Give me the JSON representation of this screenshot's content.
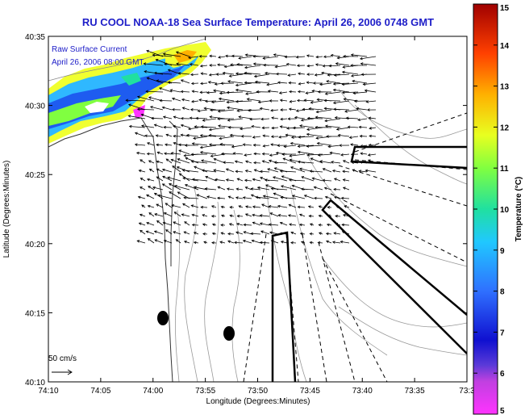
{
  "title": "RU COOL  NOAA-18  Sea Surface Temperature:  April 26, 2006 0748 GMT",
  "inset": {
    "line1": "Raw Surface Current",
    "line2": "April 26, 2006 08:00 GMT"
  },
  "scale_label": "50 cm/s",
  "axes": {
    "xlabel": "Longitude (Degrees:Minutes)",
    "ylabel": "Latitude (Degrees:Minutes)",
    "x_ticks": [
      "74:10",
      "74:05",
      "74:00",
      "73:55",
      "73:50",
      "73:45",
      "73:40",
      "73:35",
      "73:3"
    ],
    "y_ticks": [
      "40:35",
      "40:30",
      "40:25",
      "40:20",
      "40:15",
      "40:10"
    ]
  },
  "colorbar": {
    "label": "Temperature (°C)",
    "ticks": [
      "15",
      "14",
      "13",
      "12",
      "11",
      "10",
      "9",
      "8",
      "7",
      "6",
      "5"
    ],
    "range": [
      5,
      15
    ],
    "colors": [
      "#ff33ff",
      "#1010d0",
      "#2f70ff",
      "#20c8ff",
      "#20e0a0",
      "#80ff40",
      "#e8ff20",
      "#ffb000",
      "#ff4000",
      "#a00000"
    ]
  }
}
